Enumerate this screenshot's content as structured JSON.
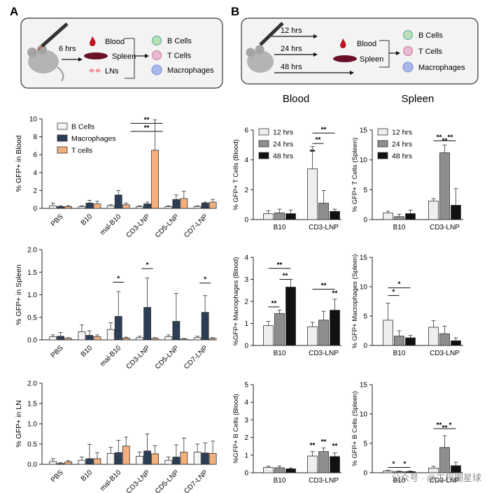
{
  "panel_labels": [
    "A",
    "B"
  ],
  "schematic_a": {
    "time": "6 hrs",
    "organs": [
      "Blood",
      "Spleen",
      "LNs"
    ],
    "cells": [
      "B Cells",
      "T Cells",
      "Macrophages"
    ]
  },
  "schematic_b": {
    "times": [
      "12 hrs",
      "24 hrs",
      "48 hrs"
    ],
    "organs": [
      "Blood",
      "Spleen"
    ],
    "cells": [
      "B Cells",
      "T Cells",
      "Macrophages"
    ]
  },
  "column_titles": [
    "Blood",
    "Spleen"
  ],
  "watermark": "公众号 · @工程圈星球",
  "colors": {
    "b_cells": "#f6f6f6",
    "macrophages": "#2c3d56",
    "t_cells": "#f2b07e",
    "h12": "#eeeeee",
    "h24": "#8e8e8e",
    "h48": "#111111"
  },
  "chart_data": [
    {
      "id": "A1",
      "type": "bar",
      "ylabel": "% GFP+ in Blood",
      "ylim": [
        0,
        10
      ],
      "yticks": [
        "0",
        "2",
        "4",
        "6",
        "8",
        "10"
      ],
      "categories": [
        "PBS",
        "B10",
        "mal-B10",
        "CD3-LNP",
        "CD5-LNP",
        "CD7-LNP"
      ],
      "legend": "top-left",
      "series": [
        {
          "name": "B Cells",
          "color": "#f6f6f6",
          "values": [
            0.3,
            0.2,
            0.3,
            0.2,
            0.2,
            0.2
          ],
          "err": [
            0.3,
            0.1,
            0.1,
            0.1,
            0.1,
            0.1
          ]
        },
        {
          "name": "Macrophages",
          "color": "#2c3d56",
          "values": [
            0.2,
            0.6,
            1.5,
            0.5,
            1.0,
            0.6
          ],
          "err": [
            0.1,
            0.3,
            0.5,
            0.2,
            0.5,
            0.1
          ]
        },
        {
          "name": "T cells",
          "color": "#f2b07e",
          "values": [
            0.2,
            0.5,
            0.4,
            6.5,
            1.1,
            0.7
          ],
          "err": [
            0.1,
            0.3,
            0.2,
            3.4,
            0.8,
            0.3
          ]
        }
      ],
      "annotations": [
        "**",
        "**"
      ]
    },
    {
      "id": "A2",
      "type": "bar",
      "ylabel": "% GFP+ in Spleen",
      "ylim": [
        0,
        2.0
      ],
      "yticks": [
        "0.0",
        "0.5",
        "1.0",
        "1.5",
        "2.0"
      ],
      "categories": [
        "PBS",
        "B10",
        "mal-B10",
        "CD3-LNP",
        "CD5-LNP",
        "CD7-LNP"
      ],
      "series": [
        {
          "name": "B Cells",
          "color": "#f6f6f6",
          "values": [
            0.07,
            0.18,
            0.23,
            0.05,
            0.07,
            0.05
          ],
          "err": [
            0.04,
            0.15,
            0.15,
            0.03,
            0.04,
            0.03
          ]
        },
        {
          "name": "Macrophages",
          "color": "#2c3d56",
          "values": [
            0.08,
            0.1,
            0.52,
            0.72,
            0.41,
            0.61
          ],
          "err": [
            0.08,
            0.1,
            0.55,
            0.65,
            0.62,
            0.37
          ]
        },
        {
          "name": "T cells",
          "color": "#f2b07e",
          "values": [
            0.03,
            0.07,
            0.04,
            0.03,
            0.02,
            0.03
          ],
          "err": [
            0.02,
            0.04,
            0.02,
            0.02,
            0.01,
            0.02
          ]
        }
      ],
      "annotations": [
        "*",
        "*",
        "*"
      ]
    },
    {
      "id": "A3",
      "type": "bar",
      "ylabel": "% GFP+ in LN",
      "ylim": [
        0,
        2.0
      ],
      "yticks": [
        "0.0",
        "0.5",
        "1.0",
        "1.5",
        "2.0"
      ],
      "categories": [
        "PBS",
        "B10",
        "mal-B10",
        "CD3-LNP",
        "CD5-LNP",
        "CD7-LNP"
      ],
      "series": [
        {
          "name": "B Cells",
          "color": "#f6f6f6",
          "values": [
            0.07,
            0.1,
            0.27,
            0.2,
            0.1,
            0.3
          ],
          "err": [
            0.07,
            0.08,
            0.15,
            0.1,
            0.08,
            0.2
          ]
        },
        {
          "name": "Macrophages",
          "color": "#2c3d56",
          "values": [
            0.02,
            0.14,
            0.29,
            0.33,
            0.18,
            0.28
          ],
          "err": [
            0.02,
            0.35,
            0.3,
            0.42,
            0.3,
            0.25
          ]
        },
        {
          "name": "T cells",
          "color": "#f2b07e",
          "values": [
            0.06,
            0.14,
            0.45,
            0.26,
            0.3,
            0.27
          ],
          "err": [
            0.03,
            0.15,
            0.22,
            0.2,
            0.35,
            0.3
          ]
        }
      ]
    },
    {
      "id": "B1",
      "type": "bar",
      "ylabel": "% GFP+ T Cells (Blood)",
      "ylim": [
        0,
        6
      ],
      "yticks": [
        "0",
        "2",
        "4",
        "6"
      ],
      "categories": [
        "B10",
        "CD3-LNP"
      ],
      "legend": "top-left",
      "series": [
        {
          "name": "12 hrs",
          "color": "#eeeeee",
          "values": [
            0.4,
            3.4
          ],
          "err": [
            0.2,
            1.5
          ]
        },
        {
          "name": "24 hrs",
          "color": "#8e8e8e",
          "values": [
            0.45,
            1.1
          ],
          "err": [
            0.25,
            0.85
          ]
        },
        {
          "name": "48 hrs",
          "color": "#111111",
          "values": [
            0.4,
            0.55
          ],
          "err": [
            0.25,
            0.15
          ]
        }
      ],
      "annotations": [
        "**",
        "**",
        "**"
      ]
    },
    {
      "id": "B2",
      "type": "bar",
      "ylabel": "% GFP+ T Cells (Spleen)",
      "ylim": [
        0,
        15
      ],
      "yticks": [
        "0",
        "5",
        "10",
        "15"
      ],
      "categories": [
        "B10",
        "CD3-LNP"
      ],
      "legend": "top-left",
      "series": [
        {
          "name": "12 hrs",
          "color": "#eeeeee",
          "values": [
            1.1,
            3.1
          ],
          "err": [
            0.3,
            0.4
          ]
        },
        {
          "name": "24 hrs",
          "color": "#8e8e8e",
          "values": [
            0.5,
            11.2
          ],
          "err": [
            0.4,
            1.3
          ]
        },
        {
          "name": "48 hrs",
          "color": "#111111",
          "values": [
            1.0,
            2.4
          ],
          "err": [
            0.6,
            2.8
          ]
        }
      ],
      "annotations": [
        "**",
        "**",
        "**"
      ]
    },
    {
      "id": "B3",
      "type": "bar",
      "ylabel": "%GFP+ Macrophages (Blood)",
      "ylim": [
        0,
        4
      ],
      "yticks": [
        "0",
        "1",
        "2",
        "3",
        "4"
      ],
      "categories": [
        "B10",
        "CD3-LNP"
      ],
      "series": [
        {
          "name": "12 hrs",
          "color": "#eeeeee",
          "values": [
            0.9,
            0.85
          ],
          "err": [
            0.2,
            0.2
          ]
        },
        {
          "name": "24 hrs",
          "color": "#8e8e8e",
          "values": [
            1.45,
            1.15
          ],
          "err": [
            0.15,
            0.4
          ]
        },
        {
          "name": "48 hrs",
          "color": "#111111",
          "values": [
            2.65,
            1.6
          ],
          "err": [
            0.35,
            0.5
          ]
        }
      ],
      "annotations": [
        "**",
        "**",
        "**",
        "**",
        "**"
      ]
    },
    {
      "id": "B4",
      "type": "bar",
      "ylabel": "% GFP+ Macrophages (Spleen)",
      "ylim": [
        0,
        15
      ],
      "yticks": [
        "0",
        "5",
        "10",
        "15"
      ],
      "categories": [
        "B10",
        "CD3-LNP"
      ],
      "series": [
        {
          "name": "12 hrs",
          "color": "#eeeeee",
          "values": [
            4.3,
            3.1
          ],
          "err": [
            2.9,
            1.1
          ]
        },
        {
          "name": "24 hrs",
          "color": "#8e8e8e",
          "values": [
            1.6,
            2.0
          ],
          "err": [
            0.9,
            1.3
          ]
        },
        {
          "name": "48 hrs",
          "color": "#111111",
          "values": [
            1.3,
            0.8
          ],
          "err": [
            0.4,
            0.5
          ]
        }
      ],
      "annotations": [
        "*",
        "*"
      ]
    },
    {
      "id": "B5",
      "type": "bar",
      "ylabel": "%GFP+ B Cells (Blood)",
      "ylim": [
        0,
        5
      ],
      "yticks": [
        "0",
        "1",
        "2",
        "3",
        "4",
        "5"
      ],
      "categories": [
        "B10",
        "CD3-LNP"
      ],
      "series": [
        {
          "name": "12 hrs",
          "color": "#eeeeee",
          "values": [
            0.3,
            0.95
          ],
          "err": [
            0.08,
            0.25
          ]
        },
        {
          "name": "24 hrs",
          "color": "#8e8e8e",
          "values": [
            0.28,
            1.2
          ],
          "err": [
            0.1,
            0.2
          ]
        },
        {
          "name": "48 hrs",
          "color": "#111111",
          "values": [
            0.22,
            0.92
          ],
          "err": [
            0.05,
            0.2
          ]
        }
      ],
      "annotations": [
        "**",
        "**",
        "**"
      ]
    },
    {
      "id": "B6",
      "type": "bar",
      "ylabel": "% GFP+ B Cells (Spleen)",
      "ylim": [
        0,
        15
      ],
      "yticks": [
        "0",
        "5",
        "10",
        "15"
      ],
      "categories": [
        "B10",
        "CD3-LNP"
      ],
      "series": [
        {
          "name": "12 hrs",
          "color": "#eeeeee",
          "values": [
            0.3,
            0.8
          ],
          "err": [
            0.1,
            0.3
          ]
        },
        {
          "name": "24 hrs",
          "color": "#8e8e8e",
          "values": [
            0.2,
            4.3
          ],
          "err": [
            0.1,
            2.0
          ]
        },
        {
          "name": "48 hrs",
          "color": "#111111",
          "values": [
            0.2,
            1.2
          ],
          "err": [
            0.1,
            0.6
          ]
        }
      ],
      "annotations": [
        "*",
        "*",
        "**",
        "*",
        "**"
      ]
    }
  ]
}
